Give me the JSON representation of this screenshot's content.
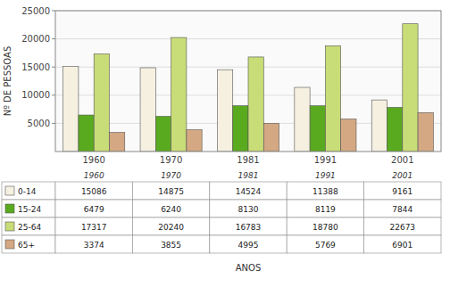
{
  "chart_data": {
    "type": "bar",
    "ylabel": "Nº DE PESSOAS",
    "xlabel": "ANOS",
    "categories": [
      "1960",
      "1970",
      "1981",
      "1991",
      "2001"
    ],
    "series": [
      {
        "name": "0-14",
        "color": "#f5f0e0",
        "values": [
          15086,
          14875,
          14524,
          11388,
          9161
        ]
      },
      {
        "name": "15-24",
        "color": "#5aaa20",
        "values": [
          6479,
          6240,
          8130,
          8119,
          7844
        ]
      },
      {
        "name": "25-64",
        "color": "#c8dc78",
        "values": [
          17317,
          20240,
          16783,
          18780,
          22673
        ]
      },
      {
        "name": "65+",
        "color": "#d4a882",
        "values": [
          3374,
          3855,
          4995,
          5769,
          6901
        ]
      }
    ],
    "ylim": [
      0,
      25000
    ],
    "yticks": [
      5000,
      10000,
      15000,
      20000,
      25000
    ],
    "grid": true,
    "data_labels": true
  }
}
